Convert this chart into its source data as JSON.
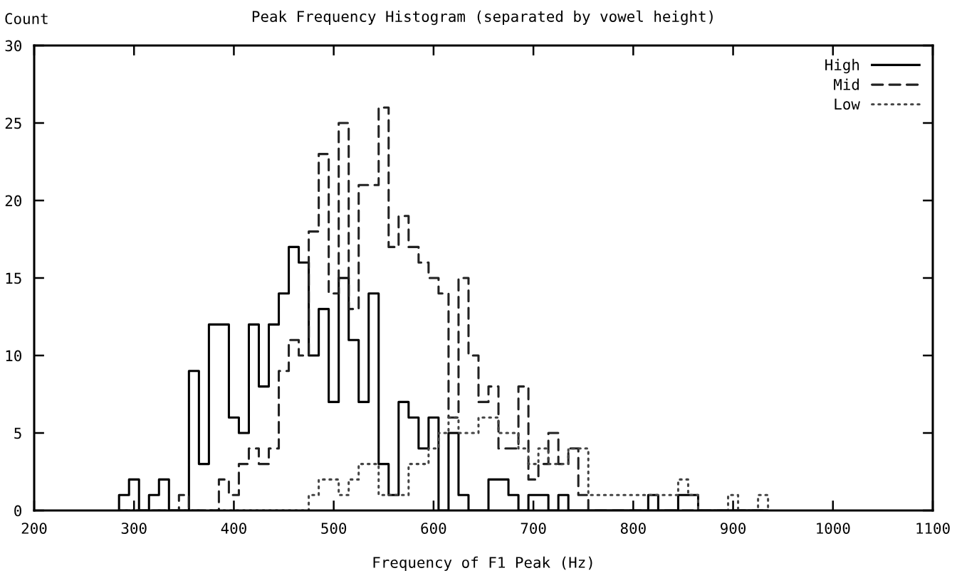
{
  "chart_data": {
    "type": "histogram",
    "title": "Peak Frequency Histogram (separated by vowel height)",
    "xlabel": "Frequency of F1 Peak (Hz)",
    "ylabel": "Count",
    "bins": [
      285,
      295,
      305,
      315,
      325,
      335,
      345,
      355,
      365,
      375,
      385,
      395,
      405,
      415,
      425,
      435,
      445,
      455,
      465,
      475,
      485,
      495,
      505,
      515,
      525,
      535,
      545,
      555,
      565,
      575,
      585,
      595,
      605,
      615,
      625,
      635,
      645,
      655,
      665,
      675,
      685,
      695,
      705,
      715,
      725,
      735,
      745,
      755,
      765,
      775,
      785,
      795,
      805,
      815,
      825,
      835,
      845,
      855,
      865,
      875,
      885,
      895,
      905,
      915,
      925,
      935
    ],
    "series": [
      {
        "name": "High",
        "color": "#000000",
        "line_style": "solid",
        "values": [
          1,
          2,
          0,
          1,
          2,
          0,
          0,
          9,
          3,
          12,
          12,
          6,
          5,
          12,
          8,
          12,
          14,
          17,
          16,
          10,
          13,
          7,
          15,
          11,
          7,
          14,
          3,
          1,
          7,
          6,
          4,
          6,
          0,
          5,
          1,
          0,
          0,
          2,
          2,
          1,
          0,
          1,
          1,
          0,
          1,
          0,
          0,
          0,
          0,
          0,
          0,
          0,
          0,
          1,
          0,
          0,
          1,
          1,
          0,
          0,
          0,
          0,
          0,
          0,
          0
        ]
      },
      {
        "name": "Mid",
        "color": "#222222",
        "line_style": "dashed",
        "values": [
          0,
          0,
          0,
          0,
          0,
          0,
          1,
          0,
          0,
          0,
          2,
          1,
          3,
          4,
          3,
          4,
          9,
          11,
          10,
          18,
          23,
          14,
          25,
          13,
          21,
          21,
          26,
          17,
          19,
          17,
          16,
          15,
          14,
          6,
          15,
          10,
          7,
          8,
          4,
          4,
          8,
          2,
          3,
          5,
          3,
          4,
          1,
          0,
          0,
          0,
          0,
          0,
          0,
          0,
          0,
          0,
          0,
          0,
          0,
          0,
          0,
          0,
          0,
          0,
          0
        ]
      },
      {
        "name": "Low",
        "color": "#444444",
        "line_style": "dotted",
        "values": [
          0,
          0,
          0,
          0,
          0,
          0,
          0,
          0,
          0,
          0,
          0,
          0,
          0,
          0,
          0,
          0,
          0,
          0,
          0,
          1,
          2,
          2,
          1,
          2,
          3,
          3,
          1,
          1,
          1,
          3,
          3,
          4,
          5,
          6,
          5,
          5,
          6,
          6,
          5,
          5,
          4,
          3,
          4,
          3,
          3,
          4,
          4,
          1,
          1,
          1,
          1,
          1,
          1,
          1,
          1,
          1,
          2,
          1,
          0,
          0,
          0,
          1,
          0,
          0,
          1
        ]
      }
    ],
    "xlim": [
      200,
      1100
    ],
    "xticks": [
      200,
      300,
      400,
      500,
      600,
      700,
      800,
      900,
      1000,
      1100
    ],
    "ylim": [
      0,
      30
    ],
    "yticks": [
      0,
      5,
      10,
      15,
      20,
      25,
      30
    ],
    "legend": "top right"
  }
}
